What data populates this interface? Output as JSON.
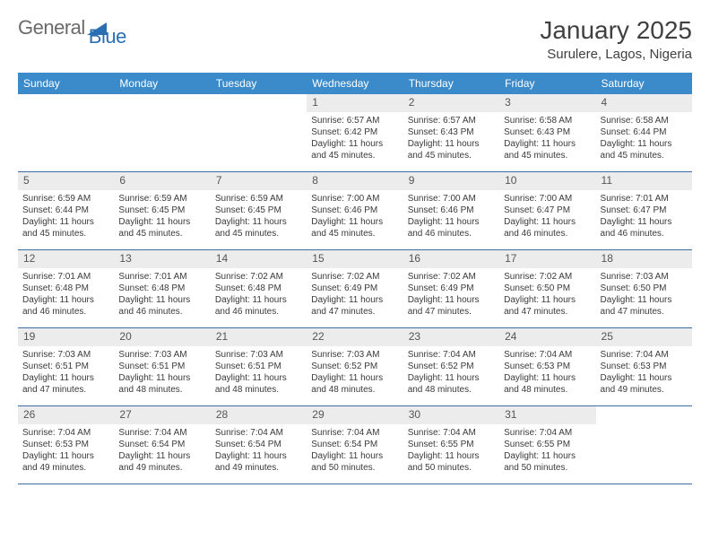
{
  "logo": {
    "text1": "General",
    "text2": "Blue"
  },
  "title": "January 2025",
  "location": "Surulere, Lagos, Nigeria",
  "colors": {
    "header_bg": "#3b8bca",
    "header_text": "#ffffff",
    "daynum_bg": "#ececec",
    "daynum_text": "#555555",
    "body_text": "#3a3a3a",
    "row_border": "#3b6fa3",
    "logo_gray": "#6a6a6a",
    "logo_blue": "#2b6fb3"
  },
  "day_headers": [
    "Sunday",
    "Monday",
    "Tuesday",
    "Wednesday",
    "Thursday",
    "Friday",
    "Saturday"
  ],
  "weeks": [
    [
      {
        "empty": true
      },
      {
        "empty": true
      },
      {
        "empty": true
      },
      {
        "num": "1",
        "sunrise": "6:57 AM",
        "sunset": "6:42 PM",
        "daylight": "11 hours and 45 minutes."
      },
      {
        "num": "2",
        "sunrise": "6:57 AM",
        "sunset": "6:43 PM",
        "daylight": "11 hours and 45 minutes."
      },
      {
        "num": "3",
        "sunrise": "6:58 AM",
        "sunset": "6:43 PM",
        "daylight": "11 hours and 45 minutes."
      },
      {
        "num": "4",
        "sunrise": "6:58 AM",
        "sunset": "6:44 PM",
        "daylight": "11 hours and 45 minutes."
      }
    ],
    [
      {
        "num": "5",
        "sunrise": "6:59 AM",
        "sunset": "6:44 PM",
        "daylight": "11 hours and 45 minutes."
      },
      {
        "num": "6",
        "sunrise": "6:59 AM",
        "sunset": "6:45 PM",
        "daylight": "11 hours and 45 minutes."
      },
      {
        "num": "7",
        "sunrise": "6:59 AM",
        "sunset": "6:45 PM",
        "daylight": "11 hours and 45 minutes."
      },
      {
        "num": "8",
        "sunrise": "7:00 AM",
        "sunset": "6:46 PM",
        "daylight": "11 hours and 45 minutes."
      },
      {
        "num": "9",
        "sunrise": "7:00 AM",
        "sunset": "6:46 PM",
        "daylight": "11 hours and 46 minutes."
      },
      {
        "num": "10",
        "sunrise": "7:00 AM",
        "sunset": "6:47 PM",
        "daylight": "11 hours and 46 minutes."
      },
      {
        "num": "11",
        "sunrise": "7:01 AM",
        "sunset": "6:47 PM",
        "daylight": "11 hours and 46 minutes."
      }
    ],
    [
      {
        "num": "12",
        "sunrise": "7:01 AM",
        "sunset": "6:48 PM",
        "daylight": "11 hours and 46 minutes."
      },
      {
        "num": "13",
        "sunrise": "7:01 AM",
        "sunset": "6:48 PM",
        "daylight": "11 hours and 46 minutes."
      },
      {
        "num": "14",
        "sunrise": "7:02 AM",
        "sunset": "6:48 PM",
        "daylight": "11 hours and 46 minutes."
      },
      {
        "num": "15",
        "sunrise": "7:02 AM",
        "sunset": "6:49 PM",
        "daylight": "11 hours and 47 minutes."
      },
      {
        "num": "16",
        "sunrise": "7:02 AM",
        "sunset": "6:49 PM",
        "daylight": "11 hours and 47 minutes."
      },
      {
        "num": "17",
        "sunrise": "7:02 AM",
        "sunset": "6:50 PM",
        "daylight": "11 hours and 47 minutes."
      },
      {
        "num": "18",
        "sunrise": "7:03 AM",
        "sunset": "6:50 PM",
        "daylight": "11 hours and 47 minutes."
      }
    ],
    [
      {
        "num": "19",
        "sunrise": "7:03 AM",
        "sunset": "6:51 PM",
        "daylight": "11 hours and 47 minutes."
      },
      {
        "num": "20",
        "sunrise": "7:03 AM",
        "sunset": "6:51 PM",
        "daylight": "11 hours and 48 minutes."
      },
      {
        "num": "21",
        "sunrise": "7:03 AM",
        "sunset": "6:51 PM",
        "daylight": "11 hours and 48 minutes."
      },
      {
        "num": "22",
        "sunrise": "7:03 AM",
        "sunset": "6:52 PM",
        "daylight": "11 hours and 48 minutes."
      },
      {
        "num": "23",
        "sunrise": "7:04 AM",
        "sunset": "6:52 PM",
        "daylight": "11 hours and 48 minutes."
      },
      {
        "num": "24",
        "sunrise": "7:04 AM",
        "sunset": "6:53 PM",
        "daylight": "11 hours and 48 minutes."
      },
      {
        "num": "25",
        "sunrise": "7:04 AM",
        "sunset": "6:53 PM",
        "daylight": "11 hours and 49 minutes."
      }
    ],
    [
      {
        "num": "26",
        "sunrise": "7:04 AM",
        "sunset": "6:53 PM",
        "daylight": "11 hours and 49 minutes."
      },
      {
        "num": "27",
        "sunrise": "7:04 AM",
        "sunset": "6:54 PM",
        "daylight": "11 hours and 49 minutes."
      },
      {
        "num": "28",
        "sunrise": "7:04 AM",
        "sunset": "6:54 PM",
        "daylight": "11 hours and 49 minutes."
      },
      {
        "num": "29",
        "sunrise": "7:04 AM",
        "sunset": "6:54 PM",
        "daylight": "11 hours and 50 minutes."
      },
      {
        "num": "30",
        "sunrise": "7:04 AM",
        "sunset": "6:55 PM",
        "daylight": "11 hours and 50 minutes."
      },
      {
        "num": "31",
        "sunrise": "7:04 AM",
        "sunset": "6:55 PM",
        "daylight": "11 hours and 50 minutes."
      },
      {
        "empty": true
      }
    ]
  ],
  "labels": {
    "sunrise": "Sunrise:",
    "sunset": "Sunset:",
    "daylight": "Daylight:"
  }
}
